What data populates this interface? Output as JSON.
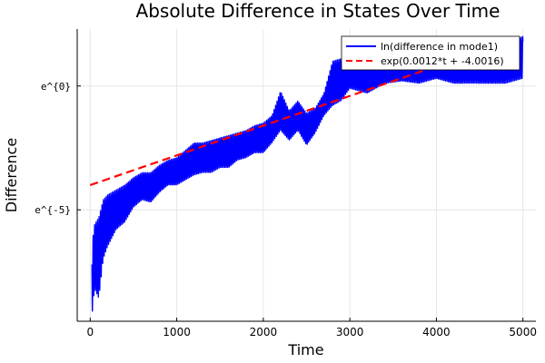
{
  "chart_data": {
    "type": "line",
    "title": "Absolute Difference in States Over Time",
    "xlabel": "Time",
    "ylabel": "Difference",
    "xlim": [
      -150,
      5150
    ],
    "ylim": [
      -9.5,
      2.3
    ],
    "y_scale": "log (natural), labels shown as exponents of e",
    "xticks": [
      0,
      1000,
      2000,
      3000,
      4000,
      5000
    ],
    "xtick_labels": [
      "0",
      "1000",
      "2000",
      "3000",
      "4000",
      "5000"
    ],
    "yticks": [
      0,
      -5
    ],
    "ytick_labels": [
      "e^{0}",
      "e^{-5}"
    ],
    "grid": true,
    "legend_position": "top-right",
    "series": [
      {
        "name": "ln(difference in mode1)",
        "color": "#0000ff",
        "style": "solid",
        "envelope_t": [
          20,
          50,
          100,
          150,
          200,
          300,
          400,
          500,
          600,
          700,
          800,
          900,
          1000,
          1100,
          1200,
          1300,
          1400,
          1500,
          1600,
          1700,
          1800,
          1900,
          2000,
          2100,
          2200,
          2300,
          2400,
          2500,
          2600,
          2700,
          2800,
          2900,
          3000,
          3200,
          3400,
          3600,
          3800,
          4000,
          4200,
          4400,
          4600,
          4800,
          5000
        ],
        "envelope_lower": [
          -9.3,
          -8.2,
          -8.6,
          -7.0,
          -6.5,
          -5.8,
          -5.5,
          -4.9,
          -4.6,
          -4.7,
          -4.3,
          -4.0,
          -4.0,
          -3.8,
          -3.6,
          -3.5,
          -3.5,
          -3.3,
          -3.3,
          -3.0,
          -2.9,
          -2.7,
          -2.7,
          -2.3,
          -1.8,
          -2.2,
          -1.8,
          -2.4,
          -1.9,
          -1.2,
          -0.8,
          -0.6,
          -0.1,
          -0.3,
          0.1,
          0.2,
          0.1,
          0.3,
          0.1,
          0.1,
          0.1,
          0.1,
          0.3
        ],
        "envelope_upper": [
          -6.4,
          -5.6,
          -5.3,
          -4.6,
          -4.4,
          -4.2,
          -4.0,
          -3.7,
          -3.5,
          -3.5,
          -3.2,
          -3.0,
          -2.9,
          -2.6,
          -2.3,
          -2.3,
          -2.2,
          -2.1,
          -2.0,
          -1.9,
          -1.8,
          -1.6,
          -1.5,
          -1.2,
          -0.2,
          -1.0,
          -0.6,
          -1.1,
          -0.9,
          -0.3,
          1.0,
          1.1,
          0.9,
          1.3,
          1.0,
          1.1,
          1.6,
          1.2,
          1.5,
          1.8,
          1.5,
          1.7,
          2.0
        ]
      },
      {
        "name": "exp(0.0012*t + -4.0016)",
        "color": "#ff0000",
        "style": "dashed",
        "slope": 0.0012,
        "intercept": -4.0016,
        "t_range": [
          0,
          5000
        ]
      }
    ]
  }
}
